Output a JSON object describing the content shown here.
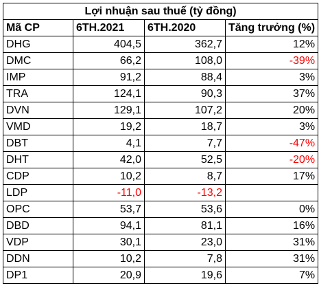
{
  "title": "Lợi nhuận sau thuế (tỷ đồng)",
  "headers": [
    "Mã CP",
    "6TH.2021",
    "6TH.2020",
    "Tăng trưởng (%)"
  ],
  "colors": {
    "negative": "#ff0000",
    "text": "#000000",
    "border": "#000000"
  },
  "rows": [
    {
      "code": "DHG",
      "h2021": "404,5",
      "h2020": "362,7",
      "growth": "12%"
    },
    {
      "code": "DMC",
      "h2021": "66,2",
      "h2020": "108,0",
      "growth": "-39%"
    },
    {
      "code": "IMP",
      "h2021": "91,2",
      "h2020": "88,4",
      "growth": "3%"
    },
    {
      "code": "TRA",
      "h2021": "124,1",
      "h2020": "90,3",
      "growth": "37%"
    },
    {
      "code": "DVN",
      "h2021": "129,1",
      "h2020": "107,2",
      "growth": "20%"
    },
    {
      "code": "VMD",
      "h2021": "19,2",
      "h2020": "18,7",
      "growth": "3%"
    },
    {
      "code": "DBT",
      "h2021": "4,1",
      "h2020": "7,7",
      "growth": "-47%"
    },
    {
      "code": "DHT",
      "h2021": "42,0",
      "h2020": "52,5",
      "growth": "-20%"
    },
    {
      "code": "CDP",
      "h2021": "10,2",
      "h2020": "8,7",
      "growth": "17%"
    },
    {
      "code": "LDP",
      "h2021": "-11,0",
      "h2020": "-13,2",
      "growth": ""
    },
    {
      "code": "OPC",
      "h2021": "53,7",
      "h2020": "53,6",
      "growth": "0%"
    },
    {
      "code": "DBD",
      "h2021": "94,1",
      "h2020": "81,1",
      "growth": "16%"
    },
    {
      "code": "VDP",
      "h2021": "30,1",
      "h2020": "23,0",
      "growth": "31%"
    },
    {
      "code": "DDN",
      "h2021": "10,2",
      "h2020": "7,8",
      "growth": "31%"
    },
    {
      "code": "DP1",
      "h2021": "20,9",
      "h2020": "19,6",
      "growth": "7%"
    }
  ]
}
